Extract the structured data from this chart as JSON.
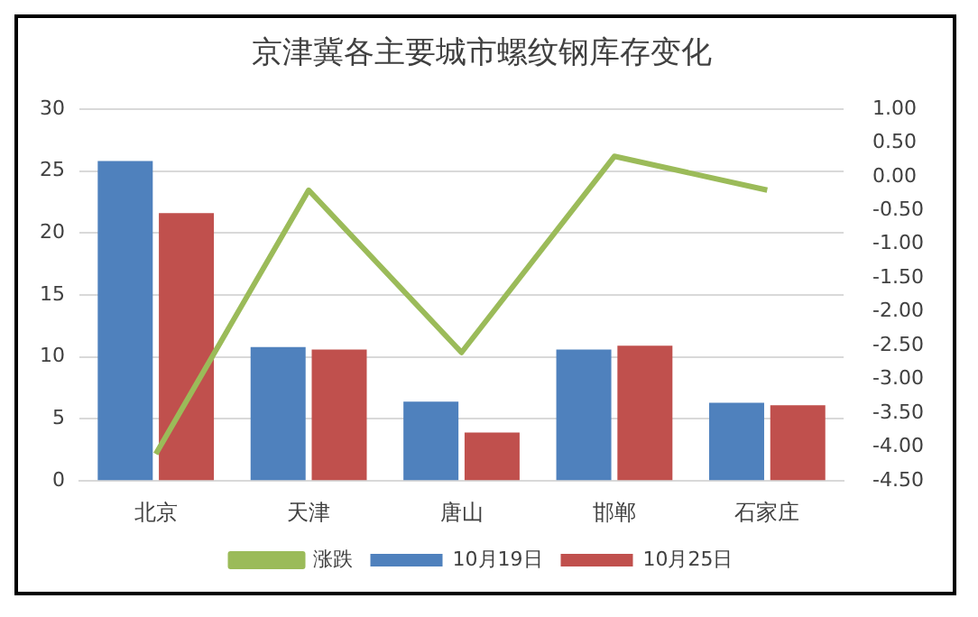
{
  "chart_data": {
    "type": "bar",
    "title": "京津冀各主要城市螺纹钢库存变化",
    "categories": [
      "北京",
      "天津",
      "唐山",
      "邯郸",
      "石家庄"
    ],
    "series": [
      {
        "name": "10月19日",
        "color": "#4f81bd",
        "values": [
          25.8,
          10.8,
          6.4,
          10.6,
          6.3
        ]
      },
      {
        "name": "10月25日",
        "color": "#c0504d",
        "values": [
          21.6,
          10.6,
          3.9,
          10.9,
          6.1
        ]
      },
      {
        "name": "涨跌",
        "type": "line",
        "axis": "y2",
        "color": "#9bbb59",
        "values": [
          -4.1,
          -0.2,
          -2.6,
          0.3,
          -0.2
        ]
      }
    ],
    "ylim": [
      0,
      30
    ],
    "yticks": [
      0,
      5,
      10,
      15,
      20,
      25,
      30
    ],
    "y2lim": [
      -4.5,
      1
    ],
    "y2ticks": [
      {
        "value": -4.5,
        "label": "-4.50"
      },
      {
        "value": -4,
        "label": "-4.00"
      },
      {
        "value": -3.5,
        "label": "-3.50"
      },
      {
        "value": -3,
        "label": "-3.00"
      },
      {
        "value": -2.5,
        "label": "-2.50"
      },
      {
        "value": -2,
        "label": "-2.00"
      },
      {
        "value": -1.5,
        "label": "-1.50"
      },
      {
        "value": -1,
        "label": "-1.00"
      },
      {
        "value": -0.5,
        "label": "-0.50"
      },
      {
        "value": 0,
        "label": "0.00"
      },
      {
        "value": 0.5,
        "label": "0.50"
      },
      {
        "value": 1,
        "label": "1.00"
      }
    ],
    "grid": "y",
    "legend": "bottom",
    "marker": "none"
  }
}
